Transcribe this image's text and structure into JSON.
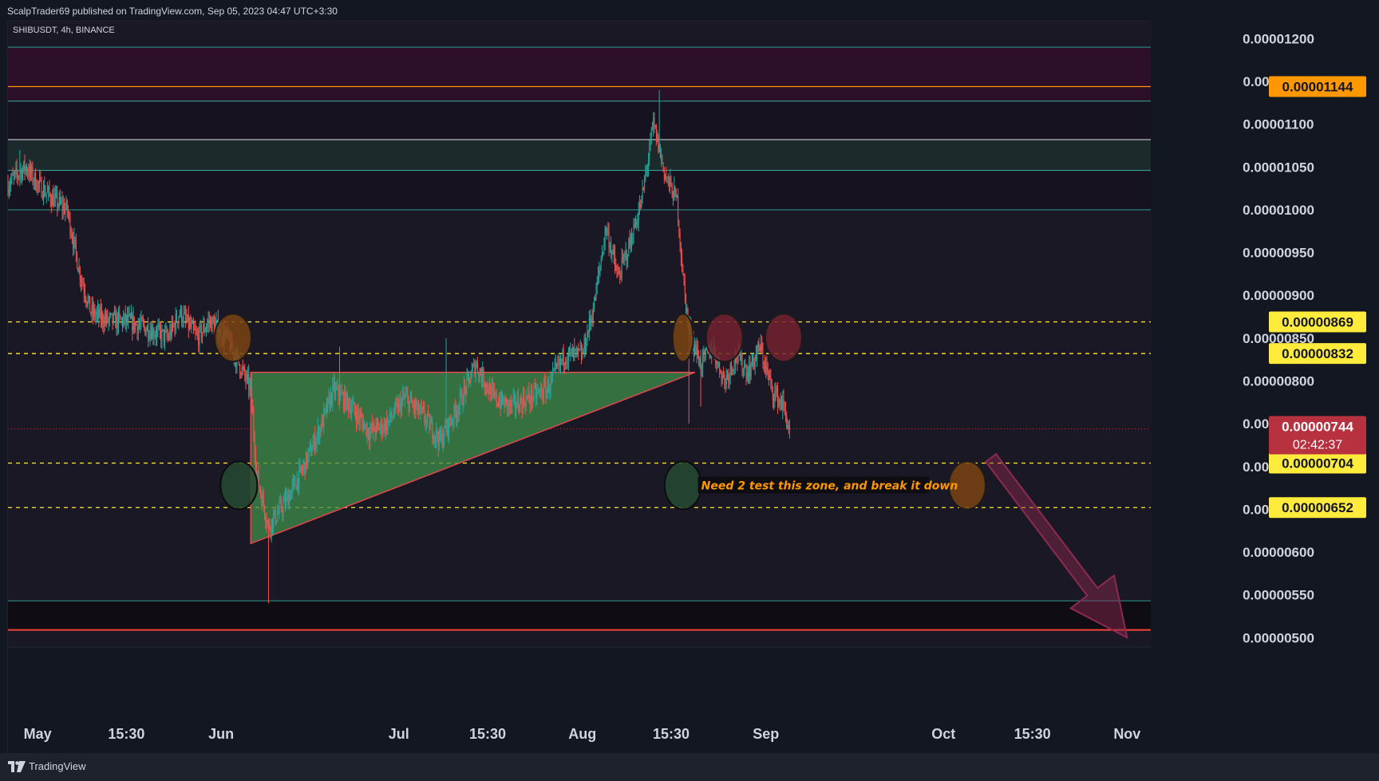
{
  "header": {
    "published_text": "ScalpTrader69 published on TradingView.com, Sep 05, 2023 04:47 UTC+3:30"
  },
  "footer": {
    "brand": "TradingView"
  },
  "chart_data": {
    "type": "candlestick",
    "symbol_label": "SHIBUSDT, 4h, BINANCE",
    "ylim": [
      4.9e-06,
      1.22e-05
    ],
    "y_ticks": [
      "0.00001200",
      "0.00001150",
      "0.00001100",
      "0.00001050",
      "0.00001000",
      "0.00000950",
      "0.00000900",
      "0.00000850",
      "0.00000800",
      "0.00000750",
      "0.00000700",
      "0.00000650",
      "0.00000600",
      "0.00000550",
      "0.00000500"
    ],
    "x_axis": {
      "range": [
        "2023-04-26",
        "2023-11-05"
      ],
      "ticks": [
        {
          "label": "May",
          "date": "2023-05-01"
        },
        {
          "label": "15:30",
          "date": "2023-05-16"
        },
        {
          "label": "Jun",
          "date": "2023-06-01"
        },
        {
          "label": "Jul",
          "date": "2023-07-01"
        },
        {
          "label": "15:30",
          "date": "2023-07-16"
        },
        {
          "label": "Aug",
          "date": "2023-08-01"
        },
        {
          "label": "15:30",
          "date": "2023-08-16"
        },
        {
          "label": "Sep",
          "date": "2023-09-01"
        },
        {
          "label": "Oct",
          "date": "2023-10-01"
        },
        {
          "label": "15:30",
          "date": "2023-10-16"
        },
        {
          "label": "Nov",
          "date": "2023-11-01"
        }
      ]
    },
    "price_path": [
      [
        "2023-04-26",
        1.03e-05
      ],
      [
        "2023-04-29",
        1.05e-05
      ],
      [
        "2023-05-01",
        1.03e-05
      ],
      [
        "2023-05-04",
        1.01e-05
      ],
      [
        "2023-05-06",
        1e-05
      ],
      [
        "2023-05-08",
        9.3e-06
      ],
      [
        "2023-05-10",
        8.8e-06
      ],
      [
        "2023-05-13",
        8.7e-06
      ],
      [
        "2023-05-16",
        8.7e-06
      ],
      [
        "2023-05-20",
        8.6e-06
      ],
      [
        "2023-05-23",
        8.5e-06
      ],
      [
        "2023-05-25",
        8.8e-06
      ],
      [
        "2023-05-28",
        8.5e-06
      ],
      [
        "2023-05-30",
        8.7e-06
      ],
      [
        "2023-06-02",
        8.5e-06
      ],
      [
        "2023-06-04",
        8.2e-06
      ],
      [
        "2023-06-06",
        7.9e-06
      ],
      [
        "2023-06-07",
        6.9e-06
      ],
      [
        "2023-06-09",
        6.3e-06
      ],
      [
        "2023-06-12",
        6.6e-06
      ],
      [
        "2023-06-15",
        7e-06
      ],
      [
        "2023-06-18",
        7.5e-06
      ],
      [
        "2023-06-20",
        7.9e-06
      ],
      [
        "2023-06-23",
        7.7e-06
      ],
      [
        "2023-06-26",
        7.4e-06
      ],
      [
        "2023-06-29",
        7.5e-06
      ],
      [
        "2023-07-02",
        7.8e-06
      ],
      [
        "2023-07-05",
        7.6e-06
      ],
      [
        "2023-07-08",
        7.3e-06
      ],
      [
        "2023-07-11",
        7.7e-06
      ],
      [
        "2023-07-14",
        8.2e-06
      ],
      [
        "2023-07-17",
        7.8e-06
      ],
      [
        "2023-07-20",
        7.7e-06
      ],
      [
        "2023-07-23",
        7.8e-06
      ],
      [
        "2023-07-26",
        7.9e-06
      ],
      [
        "2023-07-29",
        8.3e-06
      ],
      [
        "2023-08-01",
        8.3e-06
      ],
      [
        "2023-08-03",
        8.9e-06
      ],
      [
        "2023-08-05",
        9.8e-06
      ],
      [
        "2023-08-07",
        9.2e-06
      ],
      [
        "2023-08-09",
        9.6e-06
      ],
      [
        "2023-08-11",
        1.01e-05
      ],
      [
        "2023-08-13",
        1.1e-05
      ],
      [
        "2023-08-15",
        1.04e-05
      ],
      [
        "2023-08-17",
        1.01e-05
      ],
      [
        "2023-08-18",
        9.2e-06
      ],
      [
        "2023-08-19",
        8.6e-06
      ],
      [
        "2023-08-21",
        8.2e-06
      ],
      [
        "2023-08-23",
        8.4e-06
      ],
      [
        "2023-08-25",
        8e-06
      ],
      [
        "2023-08-27",
        8.3e-06
      ],
      [
        "2023-08-29",
        8.1e-06
      ],
      [
        "2023-08-31",
        8.4e-06
      ],
      [
        "2023-09-02",
        7.9e-06
      ],
      [
        "2023-09-04",
        7.7e-06
      ],
      [
        "2023-09-05",
        7.4e-06
      ]
    ],
    "wicks": [
      {
        "date": "2023-04-28",
        "high": 1.07e-05
      },
      {
        "date": "2023-06-09",
        "low": 5.4e-06
      },
      {
        "date": "2023-06-21",
        "high": 8.4e-06
      },
      {
        "date": "2023-07-09",
        "high": 8.5e-06
      },
      {
        "date": "2023-08-14",
        "high": 1.14e-05
      },
      {
        "date": "2023-08-19",
        "low": 7.5e-06
      },
      {
        "date": "2023-08-21",
        "low": 7.7e-06
      }
    ],
    "price_levels": [
      {
        "price": 1.144e-05,
        "label": "0.00001144",
        "color": "#ff9800",
        "style": "solid"
      },
      {
        "price": 8.69e-06,
        "label": "0.00000869",
        "color": "#ffeb3b",
        "style": "dashed"
      },
      {
        "price": 8.32e-06,
        "label": "0.00000832",
        "color": "#ffeb3b",
        "style": "dashed"
      },
      {
        "price": 7.04e-06,
        "label": "0.00000704",
        "color": "#ffeb3b",
        "style": "dashed"
      },
      {
        "price": 6.52e-06,
        "label": "0.00000652",
        "color": "#ffeb3b",
        "style": "dashed"
      }
    ],
    "current_price": {
      "label": "0.00000744",
      "countdown": "02:42:37",
      "price": 7.44e-06,
      "color": "#b7313f"
    },
    "zones": [
      {
        "top": 1.19e-05,
        "bottom": 1.127e-05,
        "fill": "#2e0f2a",
        "border": "#2a9d8f"
      },
      {
        "top": 1.127e-05,
        "bottom": 1.082e-05,
        "fill": "#16121f",
        "border": "#2a9d8f"
      },
      {
        "top": 1.082e-05,
        "bottom": 1.046e-05,
        "fill": "#1c2a2c",
        "border": "#e0e0e0"
      },
      {
        "top": 1.046e-05,
        "bottom": 1e-05,
        "fill": "#16121f",
        "border": "#2a9d8f"
      },
      {
        "top": 5.43e-06,
        "bottom": 5.09e-06,
        "fill": "#0f0c14",
        "border": "#2a9d8f"
      }
    ],
    "support_line": {
      "price": 5.09e-06,
      "color": "#f44336"
    },
    "triangle": {
      "points": [
        [
          "2023-06-06",
          8.1e-06
        ],
        [
          "2023-08-20",
          8.1e-06
        ],
        [
          "2023-06-06",
          6.1e-06
        ]
      ],
      "fill": "#3f8e4a",
      "stroke": "#e5484d"
    },
    "circles": [
      {
        "date": "2023-06-03",
        "price": 8.505e-06,
        "color": "orange"
      },
      {
        "date": "2023-08-18",
        "price": 8.505e-06,
        "color": "orange"
      },
      {
        "date": "2023-08-25",
        "price": 8.505e-06,
        "color": "red"
      },
      {
        "date": "2023-09-04",
        "price": 8.505e-06,
        "color": "red"
      },
      {
        "date": "2023-06-04",
        "price": 6.78e-06,
        "color": "green"
      },
      {
        "date": "2023-08-18",
        "price": 6.78e-06,
        "color": "green"
      },
      {
        "date": "2023-10-05",
        "price": 6.78e-06,
        "color": "orange"
      }
    ],
    "annotation": {
      "text": "Need 2 test this zone, and break it down",
      "date": "2023-08-20",
      "price": 6.78e-06,
      "color": "#ff9800"
    },
    "arrow": {
      "from": [
        "2023-10-09",
        7.1e-06
      ],
      "to": [
        "2023-11-01",
        5e-06
      ],
      "color": "#8e2a4f"
    }
  }
}
